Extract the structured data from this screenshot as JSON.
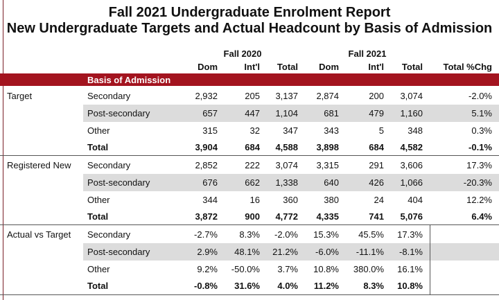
{
  "titles": {
    "line1": "Fall 2021 Undergraduate Enrolment Report",
    "line2": "New Undergraduate Targets and Actual Headcount by Basis of Admission"
  },
  "years": {
    "y2020": "Fall 2020",
    "y2021": "Fall 2021"
  },
  "columns": {
    "dom2020": "Dom",
    "intl2020": "Int'l",
    "total2020": "Total",
    "dom2021": "Dom",
    "intl2021": "Int'l",
    "total2021": "Total",
    "pct": "Total %Chg"
  },
  "band_label": "Basis of Admission",
  "sections": [
    {
      "group": "Target",
      "rows": [
        {
          "basis": "Secondary",
          "values": [
            "2,932",
            "205",
            "3,137",
            "2,874",
            "200",
            "3,074",
            "-2.0%"
          ]
        },
        {
          "basis": "Post-secondary",
          "values": [
            "657",
            "447",
            "1,104",
            "681",
            "479",
            "1,160",
            "5.1%"
          ]
        },
        {
          "basis": "Other",
          "values": [
            "315",
            "32",
            "347",
            "343",
            "5",
            "348",
            "0.3%"
          ]
        },
        {
          "basis": "Total",
          "values": [
            "3,904",
            "684",
            "4,588",
            "3,898",
            "684",
            "4,582",
            "-0.1%"
          ]
        }
      ]
    },
    {
      "group": "Registered New",
      "rows": [
        {
          "basis": "Secondary",
          "values": [
            "2,852",
            "222",
            "3,074",
            "3,315",
            "291",
            "3,606",
            "17.3%"
          ]
        },
        {
          "basis": "Post-secondary",
          "values": [
            "676",
            "662",
            "1,338",
            "640",
            "426",
            "1,066",
            "-20.3%"
          ]
        },
        {
          "basis": "Other",
          "values": [
            "344",
            "16",
            "360",
            "380",
            "24",
            "404",
            "12.2%"
          ]
        },
        {
          "basis": "Total",
          "values": [
            "3,872",
            "900",
            "4,772",
            "4,335",
            "741",
            "5,076",
            "6.4%"
          ]
        }
      ]
    },
    {
      "group": "Actual vs Target",
      "rows": [
        {
          "basis": "Secondary",
          "values": [
            "-2.7%",
            "8.3%",
            "-2.0%",
            "15.3%",
            "45.5%",
            "17.3%",
            ""
          ]
        },
        {
          "basis": "Post-secondary",
          "values": [
            "2.9%",
            "48.1%",
            "21.2%",
            "-6.0%",
            "-11.1%",
            "-8.1%",
            ""
          ]
        },
        {
          "basis": "Other",
          "values": [
            "9.2%",
            "-50.0%",
            "3.7%",
            "10.8%",
            "380.0%",
            "16.1%",
            ""
          ]
        },
        {
          "basis": "Total",
          "values": [
            "-0.8%",
            "31.6%",
            "4.0%",
            "11.2%",
            "8.3%",
            "10.8%",
            ""
          ]
        }
      ]
    }
  ]
}
